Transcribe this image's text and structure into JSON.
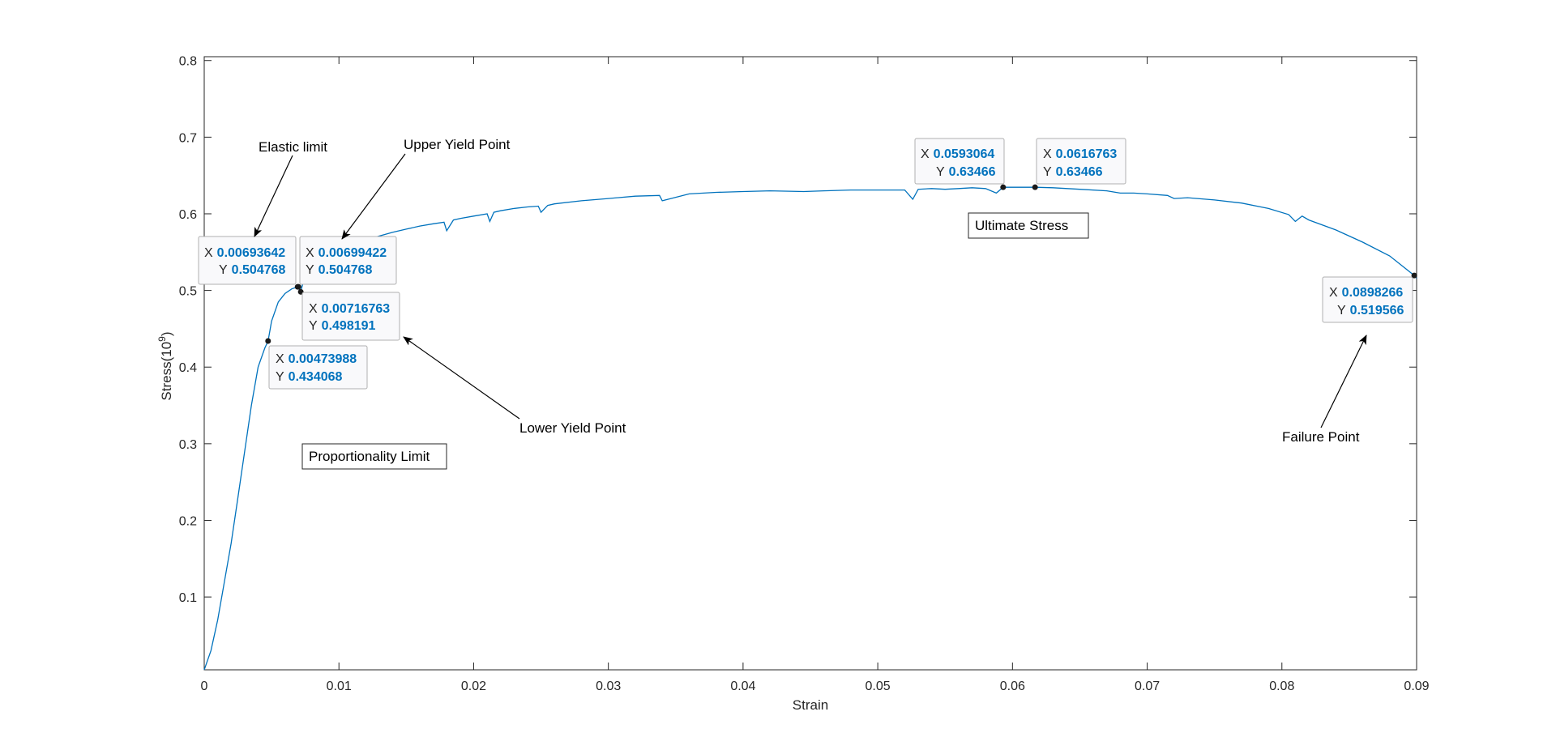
{
  "chart_data": {
    "type": "line",
    "xlabel": "Strain",
    "ylabel": "Stress(10^9)",
    "xlim": [
      0,
      0.09
    ],
    "ylim": [
      0.005,
      0.805
    ],
    "xticks": [
      "0",
      "0.01",
      "0.02",
      "0.03",
      "0.04",
      "0.05",
      "0.06",
      "0.07",
      "0.08",
      "0.09"
    ],
    "yticks": [
      "0.1",
      "0.2",
      "0.3",
      "0.4",
      "0.5",
      "0.6",
      "0.7",
      "0.8"
    ],
    "grid": false,
    "line_color": "#0072bd",
    "series": [
      {
        "x": [
          0,
          0.0005,
          0.001,
          0.0015,
          0.002,
          0.0025,
          0.003,
          0.0035,
          0.004,
          0.0045,
          0.00473988,
          0.005,
          0.0055,
          0.006,
          0.0065,
          0.00693642,
          0.00699422,
          0.00716763,
          0.0075,
          0.008,
          0.009,
          0.01,
          0.011,
          0.012,
          0.013,
          0.014,
          0.015,
          0.016,
          0.017,
          0.0178,
          0.018,
          0.0185,
          0.019,
          0.02,
          0.021,
          0.0212,
          0.0215,
          0.022,
          0.023,
          0.024,
          0.0248,
          0.025,
          0.0255,
          0.026,
          0.028,
          0.03,
          0.032,
          0.0338,
          0.034,
          0.036,
          0.038,
          0.04,
          0.042,
          0.0445,
          0.046,
          0.048,
          0.05,
          0.052,
          0.0526,
          0.053,
          0.054,
          0.055,
          0.056,
          0.057,
          0.058,
          0.0588,
          0.0593064,
          0.06,
          0.061,
          0.0616763,
          0.063,
          0.065,
          0.067,
          0.068,
          0.069,
          0.07,
          0.0715,
          0.072,
          0.073,
          0.075,
          0.077,
          0.079,
          0.0805,
          0.081,
          0.0815,
          0.082,
          0.084,
          0.086,
          0.088,
          0.0898266,
          0.09
        ],
        "y": [
          0.005,
          0.03,
          0.07,
          0.12,
          0.17,
          0.23,
          0.29,
          0.35,
          0.4,
          0.425,
          0.434068,
          0.46,
          0.485,
          0.496,
          0.502,
          0.504768,
          0.504768,
          0.498191,
          0.522,
          0.535,
          0.546,
          0.553,
          0.56,
          0.566,
          0.571,
          0.576,
          0.58,
          0.584,
          0.587,
          0.589,
          0.578,
          0.592,
          0.594,
          0.597,
          0.6,
          0.59,
          0.602,
          0.604,
          0.607,
          0.609,
          0.61,
          0.602,
          0.611,
          0.613,
          0.617,
          0.62,
          0.623,
          0.624,
          0.617,
          0.626,
          0.628,
          0.629,
          0.63,
          0.629,
          0.63,
          0.631,
          0.631,
          0.631,
          0.619,
          0.632,
          0.633,
          0.632,
          0.633,
          0.634,
          0.633,
          0.627,
          0.63466,
          0.63466,
          0.63466,
          0.63466,
          0.634,
          0.632,
          0.63,
          0.627,
          0.627,
          0.626,
          0.624,
          0.62,
          0.621,
          0.618,
          0.614,
          0.607,
          0.599,
          0.59,
          0.597,
          0.592,
          0.579,
          0.563,
          0.545,
          0.519566,
          0.516
        ]
      }
    ],
    "markers": [
      {
        "x": 0.00473988,
        "y": 0.434068
      },
      {
        "x": 0.00693642,
        "y": 0.504768
      },
      {
        "x": 0.00699422,
        "y": 0.504768
      },
      {
        "x": 0.00716763,
        "y": 0.498191
      },
      {
        "x": 0.0593064,
        "y": 0.63466
      },
      {
        "x": 0.0616763,
        "y": 0.63466
      },
      {
        "x": 0.0898266,
        "y": 0.519566
      }
    ],
    "datatips": [
      {
        "x_key": "X",
        "y_key": "Y",
        "x_value": "0.00693642",
        "y_value": "0.504768"
      },
      {
        "x_key": "X",
        "y_key": "Y",
        "x_value": "0.00699422",
        "y_value": "0.504768"
      },
      {
        "x_key": "X",
        "y_key": "Y",
        "x_value": "0.00716763",
        "y_value": "0.498191"
      },
      {
        "x_key": "X",
        "y_key": "Y",
        "x_value": "0.00473988",
        "y_value": "0.434068"
      },
      {
        "x_key": "X",
        "y_key": "Y",
        "x_value": "0.0593064",
        "y_value": "0.63466"
      },
      {
        "x_key": "X",
        "y_key": "Y",
        "x_value": "0.0616763",
        "y_value": "0.63466"
      },
      {
        "x_key": "X",
        "y_key": "Y",
        "x_value": "0.0898266",
        "y_value": "0.519566"
      }
    ],
    "annotations": {
      "elastic_limit": "Elastic limit",
      "upper_yield_point": "Upper Yield Point",
      "lower_yield_point": "Lower Yield Point",
      "proportionality_limit": "Proportionality Limit",
      "ultimate_stress": "Ultimate Stress",
      "failure_point": "Failure Point"
    }
  }
}
